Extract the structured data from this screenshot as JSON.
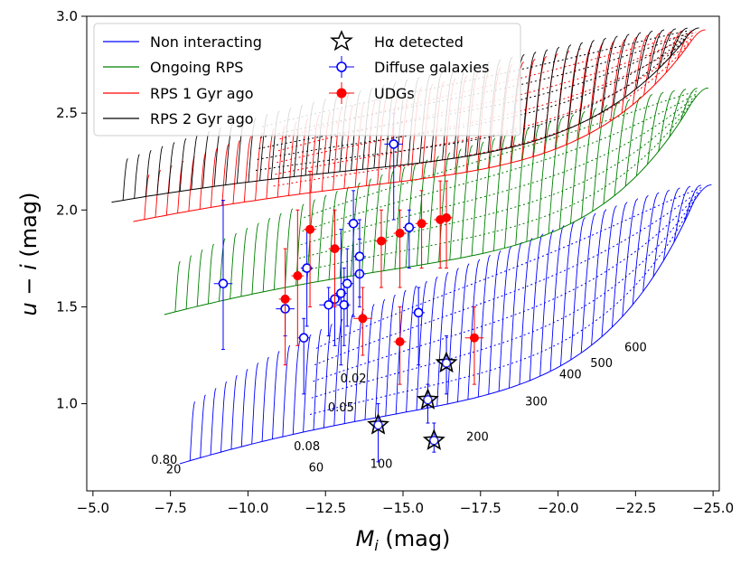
{
  "chart_data": {
    "type": "scatter",
    "title": "",
    "xlabel": "M_i (mag)",
    "ylabel": "u − i (mag)",
    "xlabel_parts": {
      "sym": "M",
      "sub": "i",
      "unit": " (mag)"
    },
    "ylabel_parts": {
      "sym": "u − i",
      "unit": " (mag)"
    },
    "xlim": [
      -4.8,
      -25.2
    ],
    "ylim": [
      0.55,
      3.0
    ],
    "xticks": [
      -5.0,
      -7.5,
      -10.0,
      -12.5,
      -15.0,
      -17.5,
      -20.0,
      -22.5,
      -25.0
    ],
    "xtick_labels": [
      "−5.0",
      "−7.5",
      "−10.0",
      "−12.5",
      "−15.0",
      "−17.5",
      "−20.0",
      "−22.5",
      "−25.0"
    ],
    "yticks": [
      1.0,
      1.5,
      2.0,
      2.5,
      3.0
    ],
    "ytick_labels": [
      "1.0",
      "1.5",
      "2.0",
      "2.5",
      "3.0"
    ],
    "colors": {
      "non": "#0000ff",
      "ongoing": "#008000",
      "rps1": "#ff0000",
      "rps2": "#000000",
      "diffuse": "#0000ff",
      "udg": "#ff0000"
    },
    "legend": {
      "position": "top-left",
      "entries": [
        {
          "label": "Non interacting",
          "kind": "line",
          "color": "#0000ff"
        },
        {
          "label": "Ongoing RPS",
          "kind": "line",
          "color": "#008000"
        },
        {
          "label": "RPS 1 Gyr ago",
          "kind": "line",
          "color": "#ff0000"
        },
        {
          "label": "RPS 2 Gyr ago",
          "kind": "line",
          "color": "#000000"
        },
        {
          "label": "Hα detected",
          "kind": "star",
          "color": "#000000"
        },
        {
          "label": "Diffuse galaxies",
          "kind": "open-circle",
          "color": "#0000ff"
        },
        {
          "label": "UDGs",
          "kind": "filled-circle",
          "color": "#ff0000"
        }
      ]
    },
    "model_grids": [
      {
        "name": "Non interacting",
        "color": "#0000ff",
        "x_start": -7.8,
        "x_end": -24.4,
        "y_start": 0.69,
        "y_mid": 1.05,
        "y_end": 2.05,
        "n_tracks": 50
      },
      {
        "name": "Ongoing RPS",
        "color": "#008000",
        "x_start": -7.3,
        "x_end": -24.3,
        "y_start": 1.46,
        "y_mid": 1.78,
        "y_end": 2.55,
        "n_tracks": 48
      },
      {
        "name": "RPS 1 Gyr ago",
        "color": "#ff0000",
        "x_start": -6.3,
        "x_end": -24.2,
        "y_start": 1.94,
        "y_mid": 2.2,
        "y_end": 2.85,
        "n_tracks": 50
      },
      {
        "name": "RPS 2 Gyr ago",
        "color": "#000000",
        "x_start": -5.6,
        "x_end": -24.0,
        "y_start": 2.04,
        "y_mid": 2.27,
        "y_end": 2.86,
        "n_tracks": 50
      }
    ],
    "spin_labels": [
      {
        "text": "0.80",
        "x": -7.3,
        "y": 0.69
      },
      {
        "text": "0.08",
        "x": -11.9,
        "y": 0.76
      },
      {
        "text": "0.05",
        "x": -13.0,
        "y": 0.96
      },
      {
        "text": "0.02",
        "x": -13.4,
        "y": 1.11
      }
    ],
    "velocity_labels": [
      {
        "text": "20",
        "x": -7.6,
        "y": 0.64
      },
      {
        "text": "60",
        "x": -12.2,
        "y": 0.65
      },
      {
        "text": "100",
        "x": -14.3,
        "y": 0.67
      },
      {
        "text": "200",
        "x": -17.4,
        "y": 0.81
      },
      {
        "text": "300",
        "x": -19.3,
        "y": 0.99
      },
      {
        "text": "400",
        "x": -20.4,
        "y": 1.13
      },
      {
        "text": "500",
        "x": -21.4,
        "y": 1.19
      },
      {
        "text": "600",
        "x": -22.5,
        "y": 1.27
      }
    ],
    "series": [
      {
        "name": "Diffuse galaxies",
        "marker": "open-circle",
        "color": "#0000ff",
        "points": [
          {
            "x": -9.2,
            "y": 1.62,
            "ylo": 1.28,
            "yhi": 2.05,
            "xerr": 0.3
          },
          {
            "x": -11.2,
            "y": 1.49,
            "ylo": 1.35,
            "yhi": 1.56,
            "xerr": 0.3
          },
          {
            "x": -11.8,
            "y": 1.34,
            "ylo": 1.05,
            "yhi": 1.44,
            "xerr": 0.2
          },
          {
            "x": -11.9,
            "y": 1.7,
            "ylo": 1.4,
            "yhi": 1.9,
            "xerr": 0.2
          },
          {
            "x": -12.6,
            "y": 1.51,
            "ylo": 1.35,
            "yhi": 1.6,
            "xerr": 0.3
          },
          {
            "x": -12.8,
            "y": 1.54,
            "ylo": 1.3,
            "yhi": 1.8,
            "xerr": 0.2
          },
          {
            "x": -13.0,
            "y": 1.57,
            "ylo": 1.2,
            "yhi": 1.9,
            "xerr": 0.2
          },
          {
            "x": -13.1,
            "y": 1.51,
            "ylo": 1.3,
            "yhi": 1.7,
            "xerr": 0.2
          },
          {
            "x": -13.2,
            "y": 1.62,
            "ylo": 1.4,
            "yhi": 1.8,
            "xerr": 0.2
          },
          {
            "x": -13.4,
            "y": 1.93,
            "ylo": 1.45,
            "yhi": 2.1,
            "xerr": 0.2
          },
          {
            "x": -13.6,
            "y": 1.67,
            "ylo": 1.5,
            "yhi": 1.85,
            "xerr": 0.2
          },
          {
            "x": -13.6,
            "y": 1.76,
            "ylo": 1.55,
            "yhi": 1.95,
            "xerr": 0.2
          },
          {
            "x": -14.7,
            "y": 2.34,
            "ylo": 1.95,
            "yhi": 2.5,
            "xerr": 0.3
          },
          {
            "x": -15.2,
            "y": 1.91,
            "ylo": 1.7,
            "yhi": 2.0,
            "xerr": 0.2
          },
          {
            "x": -15.5,
            "y": 1.47,
            "ylo": 1.2,
            "yhi": 1.6,
            "xerr": 0.2
          },
          {
            "x": -14.2,
            "y": 0.89,
            "ylo": 0.7,
            "yhi": 1.0,
            "xerr": 0.2
          },
          {
            "x": -15.8,
            "y": 1.02,
            "ylo": 0.9,
            "yhi": 1.1,
            "xerr": 0.2
          },
          {
            "x": -16.0,
            "y": 0.81,
            "ylo": 0.75,
            "yhi": 0.9,
            "xerr": 0.2
          },
          {
            "x": -16.4,
            "y": 1.21,
            "ylo": 1.05,
            "yhi": 1.35,
            "xerr": 0.2
          }
        ]
      },
      {
        "name": "UDGs",
        "marker": "filled-circle",
        "color": "#ff0000",
        "points": [
          {
            "x": -11.2,
            "y": 1.54,
            "ylo": 1.2,
            "yhi": 1.8,
            "xerr": 0.2
          },
          {
            "x": -11.6,
            "y": 1.66,
            "ylo": 1.3,
            "yhi": 2.0,
            "xerr": 0.2
          },
          {
            "x": -12.0,
            "y": 1.9,
            "ylo": 1.5,
            "yhi": 2.2,
            "xerr": 0.2
          },
          {
            "x": -12.8,
            "y": 1.8,
            "ylo": 1.5,
            "yhi": 2.0,
            "xerr": 0.2
          },
          {
            "x": -13.7,
            "y": 1.44,
            "ylo": 1.25,
            "yhi": 1.6,
            "xerr": 0.3
          },
          {
            "x": -14.3,
            "y": 1.84,
            "ylo": 1.6,
            "yhi": 2.0,
            "xerr": 0.2
          },
          {
            "x": -14.9,
            "y": 1.32,
            "ylo": 1.1,
            "yhi": 1.5,
            "xerr": 0.2
          },
          {
            "x": -14.9,
            "y": 1.88,
            "ylo": 1.6,
            "yhi": 2.0,
            "xerr": 0.2
          },
          {
            "x": -15.6,
            "y": 1.93,
            "ylo": 1.7,
            "yhi": 2.1,
            "xerr": 0.2
          },
          {
            "x": -16.2,
            "y": 1.95,
            "ylo": 1.7,
            "yhi": 2.15,
            "xerr": 0.2
          },
          {
            "x": -16.4,
            "y": 1.96,
            "ylo": 1.7,
            "yhi": 2.15,
            "xerr": 0.2
          },
          {
            "x": -17.3,
            "y": 1.34,
            "ylo": 1.1,
            "yhi": 1.5,
            "xerr": 0.3
          }
        ]
      },
      {
        "name": "Hα detected",
        "marker": "star",
        "color": "#000000",
        "points": [
          {
            "x": -14.2,
            "y": 0.89
          },
          {
            "x": -15.8,
            "y": 1.02
          },
          {
            "x": -16.0,
            "y": 0.81
          },
          {
            "x": -16.4,
            "y": 1.21
          }
        ]
      }
    ]
  }
}
